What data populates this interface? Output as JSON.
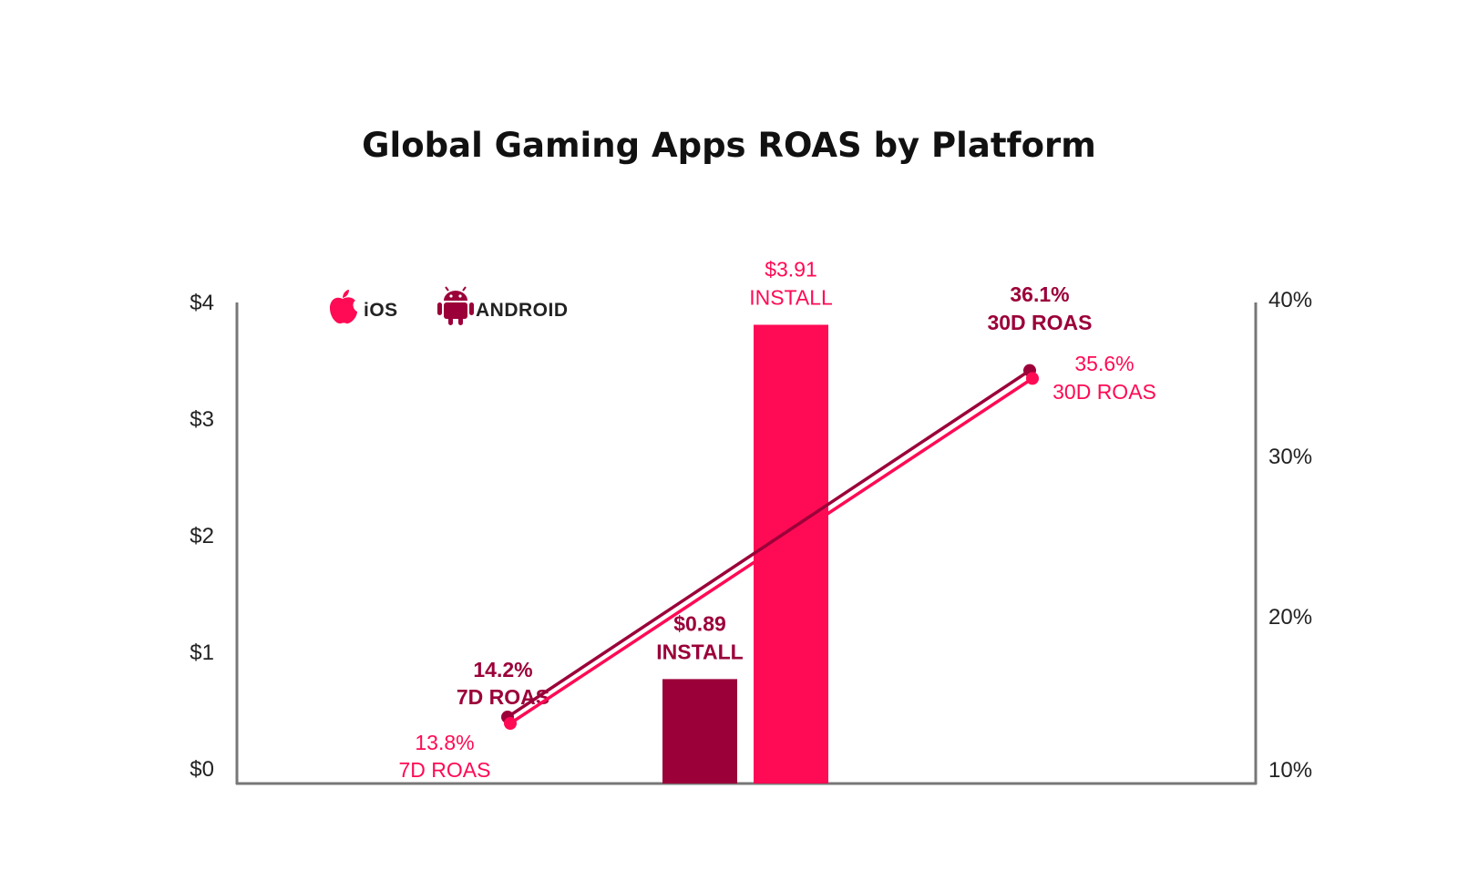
{
  "title": "Global Gaming Apps ROAS by Platform",
  "legend": [
    {
      "name": "iOS",
      "icon": "apple-icon",
      "color": "#ff0a54"
    },
    {
      "name": "ANDROID",
      "icon": "android-icon",
      "color": "#9b0039"
    }
  ],
  "colors": {
    "ios": "#ff0a54",
    "android": "#9b0039",
    "axis": "#777777"
  },
  "chart_data": {
    "type": "bar+line",
    "left_axis": {
      "ticks": [
        "$0",
        "$1",
        "$2",
        "$3",
        "$4"
      ],
      "range": [
        0,
        4.1
      ]
    },
    "right_axis": {
      "ticks": [
        "10%",
        "20%",
        "30%",
        "40%"
      ],
      "range": [
        10,
        40.4
      ]
    },
    "bars": [
      {
        "platform": "ANDROID",
        "value": 0.89,
        "value_label": "$0.89",
        "label": "INSTALL"
      },
      {
        "platform": "iOS",
        "value": 3.91,
        "value_label": "$3.91",
        "label": "INSTALL"
      }
    ],
    "lines": [
      {
        "platform": "ANDROID",
        "points": [
          {
            "x": "7D ROAS",
            "value": 14.2,
            "value_label": "14.2%",
            "label": "7D ROAS"
          },
          {
            "x": "30D ROAS",
            "value": 36.1,
            "value_label": "36.1%",
            "label": "30D ROAS"
          }
        ]
      },
      {
        "platform": "iOS",
        "points": [
          {
            "x": "7D ROAS",
            "value": 13.8,
            "value_label": "13.8%",
            "label": "7D ROAS"
          },
          {
            "x": "30D ROAS",
            "value": 35.6,
            "value_label": "35.6%",
            "label": "30D ROAS"
          }
        ]
      }
    ],
    "grid": false,
    "legend_position": "top-left"
  }
}
